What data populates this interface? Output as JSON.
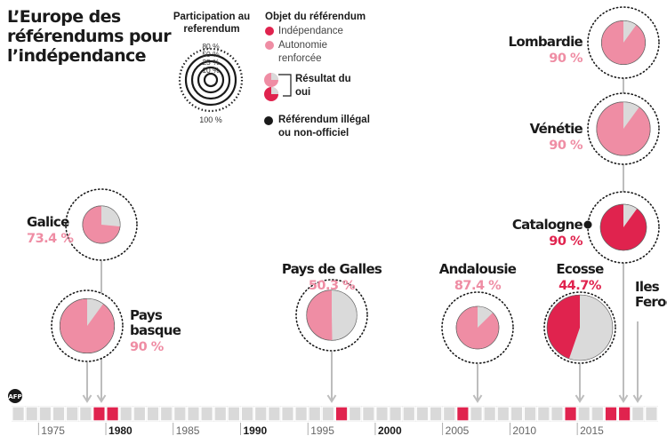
{
  "title": "L’Europe des référendums pour l’indépendance",
  "legend": {
    "participation_title": "Participation au referendum",
    "ring_labels": [
      "80 %",
      "50 %",
      "25 %",
      "10 %"
    ],
    "full_label": "100 %",
    "object_title": "Objet du référendum",
    "independence_label": "Indépendance",
    "autonomy_label": "Autonomie renforcée",
    "result_label": "Résultat du oui",
    "illegal_label": "Référendum illégal ou non-officiel"
  },
  "colors": {
    "independence": "#e0234e",
    "autonomy": "#ef8da4",
    "no_vote": "#dadada",
    "timeline": "#d9d9d9",
    "arrow": "#bdbdbd"
  },
  "logo_text": "AFP",
  "chart_data": {
    "type": "timeline-pie",
    "x_axis_ticks": [
      "1975",
      "1980",
      "1985",
      "1990",
      "1995",
      "2000",
      "2005",
      "2010",
      "2015"
    ],
    "decade_ticks": [
      "1980",
      "1990",
      "2000"
    ],
    "x_range": [
      1973,
      2021
    ],
    "referendum_years": [
      1979,
      1980,
      1997,
      2006,
      2014,
      2017,
      2018
    ],
    "referendums": [
      {
        "name": "Galice",
        "yes_label": "73.4 %",
        "yes": 73.4,
        "participation": 28,
        "type": "autonomy",
        "illegal": false,
        "year": 1980
      },
      {
        "name": "Pays basque",
        "yes_label": "90 %",
        "yes": 90,
        "participation": 59,
        "type": "autonomy",
        "illegal": false,
        "year": 1979
      },
      {
        "name": "Pays de Galles",
        "yes_label": "50.3 %",
        "yes": 50.3,
        "participation": 50,
        "type": "autonomy",
        "illegal": false,
        "year": 1997
      },
      {
        "name": "Andalousie",
        "yes_label": "87.4 %",
        "yes": 87.4,
        "participation": 36,
        "type": "autonomy",
        "illegal": false,
        "year": 2006
      },
      {
        "name": "Ecosse",
        "yes_label": "44.7%",
        "yes": 44.7,
        "participation": 85,
        "type": "independence",
        "illegal": false,
        "year": 2014
      },
      {
        "name": "Catalogne",
        "yes_label": "90 %",
        "yes": 90,
        "participation": 42,
        "type": "independence",
        "illegal": true,
        "year": 2017
      },
      {
        "name": "Vénétie",
        "yes_label": "90 %",
        "yes": 90,
        "participation": 57,
        "type": "autonomy",
        "illegal": false,
        "year": 2017
      },
      {
        "name": "Lombardie",
        "yes_label": "90 %",
        "yes": 90,
        "participation": 38,
        "type": "autonomy",
        "illegal": false,
        "year": 2017
      },
      {
        "name": "Iles Feroé",
        "yes_label": "",
        "yes": null,
        "participation": null,
        "type": "independence",
        "illegal": false,
        "year": 2018
      }
    ]
  }
}
